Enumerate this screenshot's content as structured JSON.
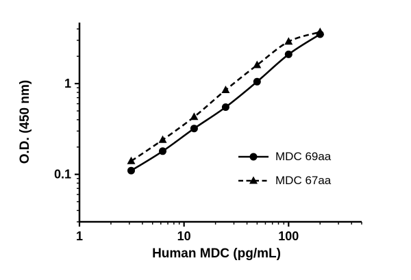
{
  "chart_data": {
    "type": "line",
    "title": "",
    "xlabel": "Human MDC (pg/mL)",
    "ylabel": "O.D. (450 nm)",
    "xscale": "log",
    "yscale": "log",
    "xlim": [
      1,
      500
    ],
    "ylim": [
      0.03,
      4.7
    ],
    "x_ticks": [
      1,
      10,
      100
    ],
    "y_ticks": [
      0.1,
      1
    ],
    "grid": false,
    "legend_position": "inside-bottom-right",
    "x": [
      3.125,
      6.25,
      12.5,
      25,
      50,
      100,
      200
    ],
    "series": [
      {
        "name": "MDC 69aa",
        "marker": "circle",
        "line": "solid",
        "color": "#000000",
        "values": [
          0.11,
          0.18,
          0.32,
          0.55,
          1.05,
          2.1,
          3.5
        ]
      },
      {
        "name": "MDC 67aa",
        "marker": "triangle",
        "line": "dashed",
        "color": "#000000",
        "values": [
          0.14,
          0.24,
          0.43,
          0.85,
          1.6,
          2.9,
          3.7
        ]
      }
    ]
  },
  "colors": {
    "axis": "#000000",
    "background": "#ffffff"
  }
}
